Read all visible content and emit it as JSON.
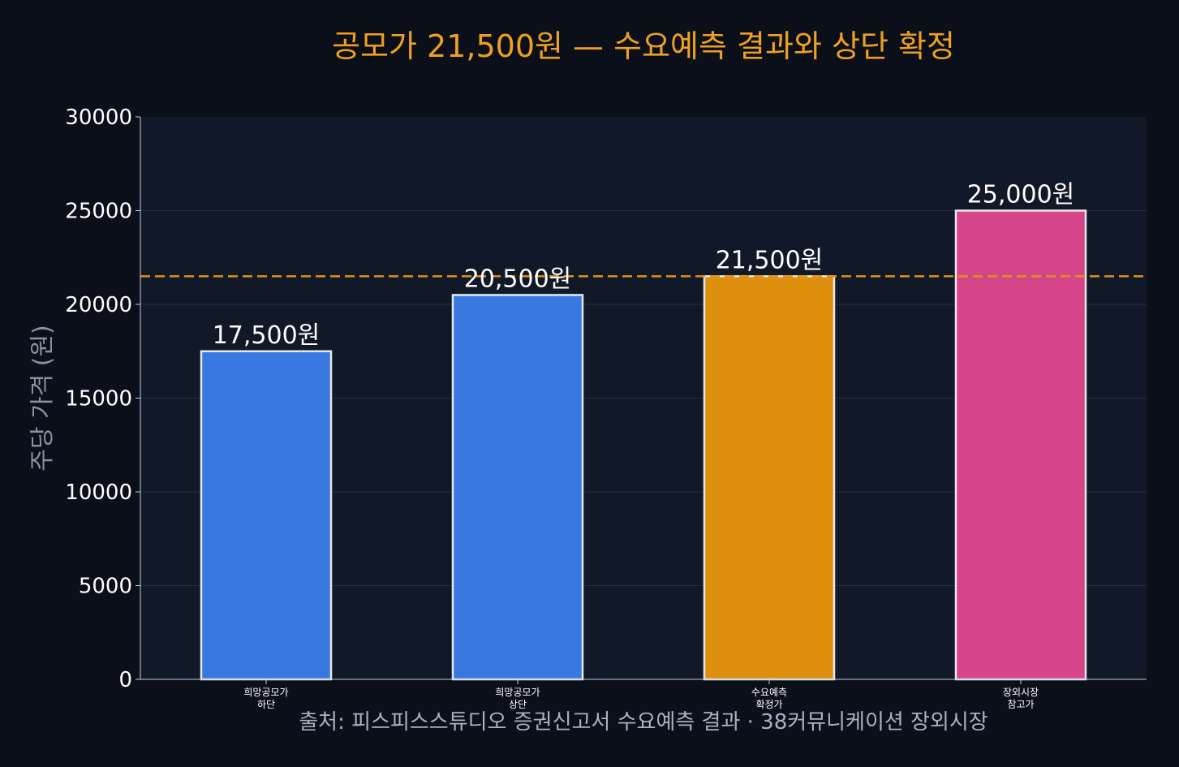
{
  "colors": {
    "page_background": "#0a0f1a",
    "plot_background": "#111828",
    "title": "#f0a020",
    "axis_text": "#ffffff",
    "ylabel": "#8a93a3",
    "source": "#a8b2c0",
    "grid": "#27303e",
    "reference_line": "#e0901a",
    "bar_edge": "#e8e8ec"
  },
  "chart_data": {
    "type": "bar",
    "title": "공모가 21,500원 — 수요예측 결과와 상단 확정",
    "xlabel": "",
    "ylabel": "주당 가격 (원)",
    "ylim": [
      0,
      30000
    ],
    "yticks": [
      "0",
      "5000",
      "10000",
      "15000",
      "20000",
      "25000",
      "30000"
    ],
    "grid": true,
    "categories": [
      [
        "희망공모가",
        "하단"
      ],
      [
        "희망공모가",
        "상단"
      ],
      [
        "수요예측",
        "확정가"
      ],
      [
        "장외시장",
        "참고가"
      ]
    ],
    "values": [
      17500,
      20500,
      21500,
      25000
    ],
    "value_labels": [
      "17,500원",
      "20,500원",
      "21,500원",
      "25,000원"
    ],
    "bar_colors": [
      "#3878e0",
      "#3878e0",
      "#de8f0e",
      "#d6448a"
    ],
    "reference_line": {
      "value": 21500,
      "style": "dashed"
    },
    "source": "출처: 피스피스스튜디오 증권신고서 수요예측 결과 · 38커뮤니케이션 장외시장"
  }
}
